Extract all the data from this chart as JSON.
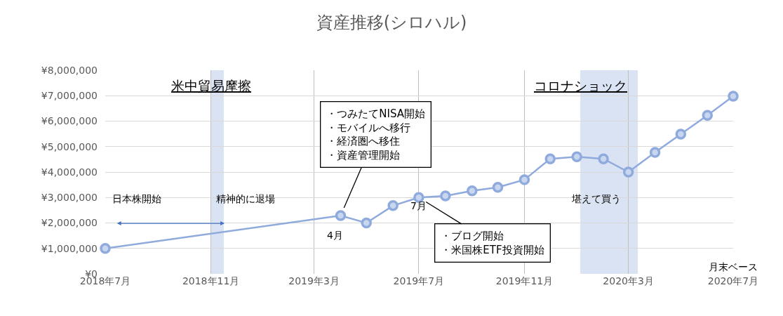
{
  "chart_data": {
    "type": "line",
    "title": "資産推移(シロハル)",
    "x": [
      "2018-07",
      "2019-04",
      "2019-05",
      "2019-06",
      "2019-07",
      "2019-08",
      "2019-09",
      "2019-10",
      "2019-11",
      "2019-12",
      "2020-01",
      "2020-02",
      "2020-03",
      "2020-04",
      "2020-05",
      "2020-06",
      "2020-07"
    ],
    "series": [
      {
        "color": "#8faadc",
        "values": [
          1000000,
          2290000,
          2000000,
          2680000,
          3000000,
          3060000,
          3260000,
          3400000,
          3700000,
          4520000,
          4600000,
          4520000,
          4000000,
          4770000,
          5490000,
          6230000,
          6980000
        ]
      }
    ],
    "xlim": [
      "2018-07",
      "2020-07"
    ],
    "xticks": [
      {
        "value": "2018-07",
        "label": "2018年7月"
      },
      {
        "value": "2018-11",
        "label": "2018年11月"
      },
      {
        "value": "2019-03",
        "label": "2019年3月"
      },
      {
        "value": "2019-07",
        "label": "2019年7月"
      },
      {
        "value": "2019-11",
        "label": "2019年11月"
      },
      {
        "value": "2020-03",
        "label": "2020年3月"
      },
      {
        "value": "2020-07",
        "label": "2020年7月"
      }
    ],
    "ylim": [
      0,
      8000000
    ],
    "yticks": [
      {
        "value": 0,
        "label": "¥0"
      },
      {
        "value": 1000000,
        "label": "¥1,000,000"
      },
      {
        "value": 2000000,
        "label": "¥2,000,000"
      },
      {
        "value": 3000000,
        "label": "¥3,000,000"
      },
      {
        "value": 4000000,
        "label": "¥4,000,000"
      },
      {
        "value": 5000000,
        "label": "¥5,000,000"
      },
      {
        "value": 6000000,
        "label": "¥6,000,000"
      },
      {
        "value": 7000000,
        "label": "¥7,000,000"
      },
      {
        "value": 8000000,
        "label": "¥8,000,000"
      }
    ],
    "grid": true,
    "marker": "circle",
    "line_style": "solid",
    "bands": [
      {
        "axis": "x",
        "from": "2018-11-01",
        "to": "2018-11-16",
        "label": "米中貿易摩擦",
        "color": "#dae3f3"
      },
      {
        "axis": "x",
        "from": "2020-01-05",
        "to": "2020-03-12",
        "label": "コロナショック",
        "color": "#dae3f3"
      }
    ],
    "annotations": [
      "日本株開始",
      "精神的に退場",
      {
        "text": "4月",
        "x": "2019-04",
        "y": 2290000
      },
      {
        "text": "7月",
        "x": "2019-07",
        "y": 3000000
      },
      {
        "text": "・つみたてNISA開始・モバイルへ移行・経済圏へ移住・資産管理開始",
        "x": "2019-04",
        "y": 2290000
      },
      {
        "text": "・ブログ開始・米国株ETF投資開始",
        "x": "2019-07",
        "y": 3000000
      },
      "堪えて買う",
      "月末ベース"
    ]
  }
}
